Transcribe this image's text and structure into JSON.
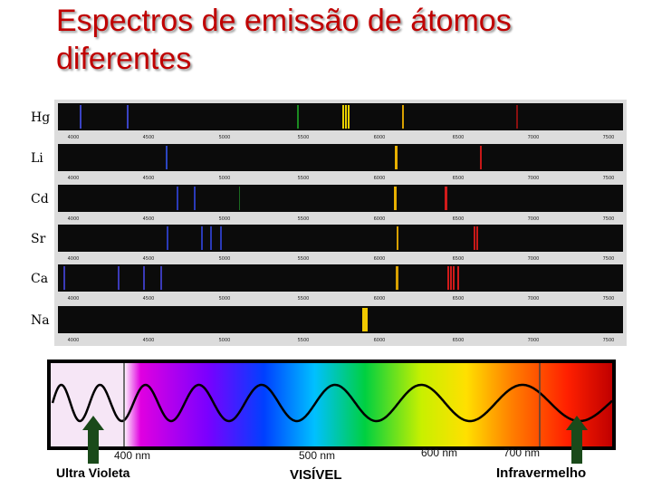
{
  "slide": {
    "title": "Espectros de emissão de átomos diferentes"
  },
  "spectra": {
    "tick_labels": [
      "4000",
      "4500",
      "5000",
      "5500",
      "6000",
      "6500",
      "7000",
      "7500"
    ],
    "rows": [
      {
        "element": "Hg",
        "lines": [
          {
            "color": "#3a43c4"
          },
          {
            "color": "#3a43c4"
          },
          {
            "color": "#1a8a20"
          },
          {
            "color": "#e8d000"
          },
          {
            "color": "#e8d000"
          },
          {
            "color": "#e8d000"
          },
          {
            "color": "#d8a000"
          },
          {
            "color": "#8a1010"
          }
        ]
      },
      {
        "element": "Li",
        "lines": [
          {
            "color": "#2b45c0"
          },
          {
            "color": "#e8b000"
          },
          {
            "color": "#c81818"
          }
        ]
      },
      {
        "element": "Cd",
        "lines": [
          {
            "color": "#2a3ab8"
          },
          {
            "color": "#2a3ab8"
          },
          {
            "color": "#1a6a20"
          },
          {
            "color": "#e8b000"
          },
          {
            "color": "#d01a1a"
          }
        ]
      },
      {
        "element": "Sr",
        "lines": [
          {
            "color": "#2a3ab8"
          },
          {
            "color": "#2a3ab8"
          },
          {
            "color": "#2a3ab8"
          },
          {
            "color": "#2a3ab8"
          },
          {
            "color": "#d8a000"
          },
          {
            "color": "#c81818"
          },
          {
            "color": "#c81818"
          }
        ]
      },
      {
        "element": "Ca",
        "lines": [
          {
            "color": "#3a3ab8"
          },
          {
            "color": "#3a3ab8"
          },
          {
            "color": "#3a3ab8"
          },
          {
            "color": "#3a3ab8"
          },
          {
            "color": "#d8a000"
          },
          {
            "color": "#d01a1a"
          },
          {
            "color": "#d01a1a"
          },
          {
            "color": "#d01a1a"
          },
          {
            "color": "#d01a1a"
          }
        ]
      },
      {
        "element": "Na",
        "lines": [
          {
            "color": "#f0c800"
          },
          {
            "color": "#f0c800"
          }
        ]
      }
    ]
  },
  "scale": {
    "nm_labels": [
      "400 nm",
      "500 nm",
      "600 nm",
      "700 nm"
    ],
    "uv_label": "Ultra Violeta",
    "visible_label": "VISÍVEL",
    "ir_label": "Infravermelho"
  }
}
